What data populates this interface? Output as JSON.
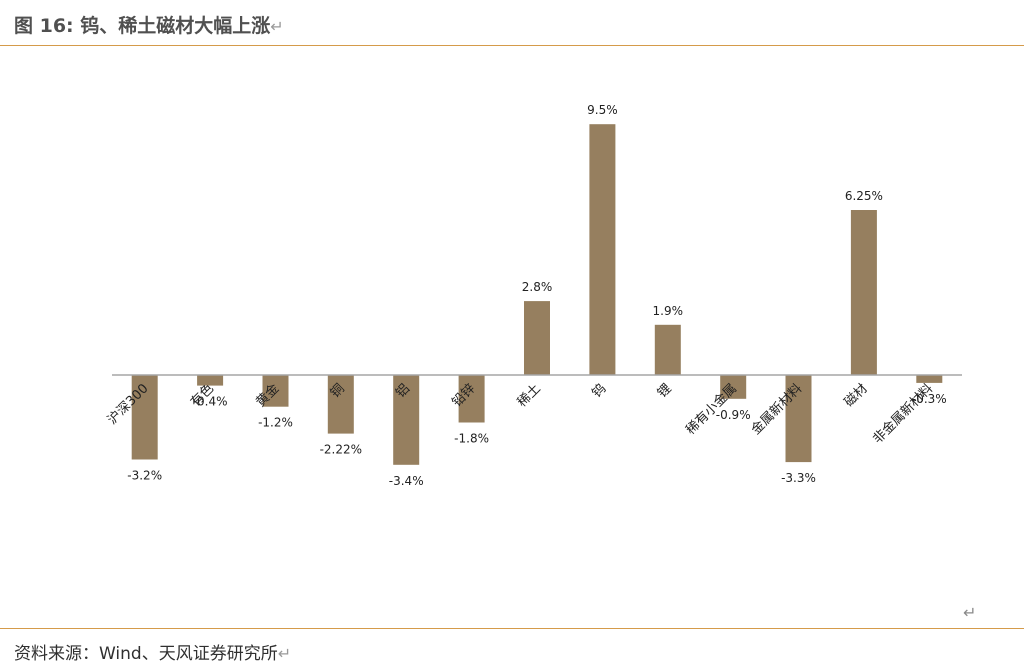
{
  "figure": {
    "title": "图 16:  钨、稀土磁材大幅上涨",
    "return_mark": "↵",
    "source": "资料来源：Wind、天风证券研究所",
    "para_mark": "↵"
  },
  "chart_data": {
    "type": "bar",
    "title": "图 16:  钨、稀土磁材大幅上涨",
    "xlabel": "",
    "ylabel": "",
    "categories": [
      "沪深300",
      "有色",
      "黄金",
      "铜",
      "铝",
      "铅锌",
      "稀土",
      "钨",
      "锂",
      "稀有小金属",
      "金属新材料",
      "磁材",
      "非金属新材料"
    ],
    "values": [
      -3.2,
      -0.4,
      -1.2,
      -2.22,
      -3.4,
      -1.8,
      2.8,
      9.5,
      1.9,
      -0.9,
      -3.3,
      6.25,
      -0.3
    ],
    "value_labels": [
      "-3.2%",
      "-0.4%",
      "-1.2%",
      "-2.22%",
      "-3.4%",
      "-1.8%",
      "2.8%",
      "9.5%",
      "1.9%",
      "-0.9%",
      "-3.3%",
      "6.25%",
      "-0.3%"
    ],
    "ylim": [
      -4,
      10
    ],
    "grid": false,
    "legend": "none",
    "bar_color": "#967f5f",
    "axis_color": "#a6a6a6"
  }
}
